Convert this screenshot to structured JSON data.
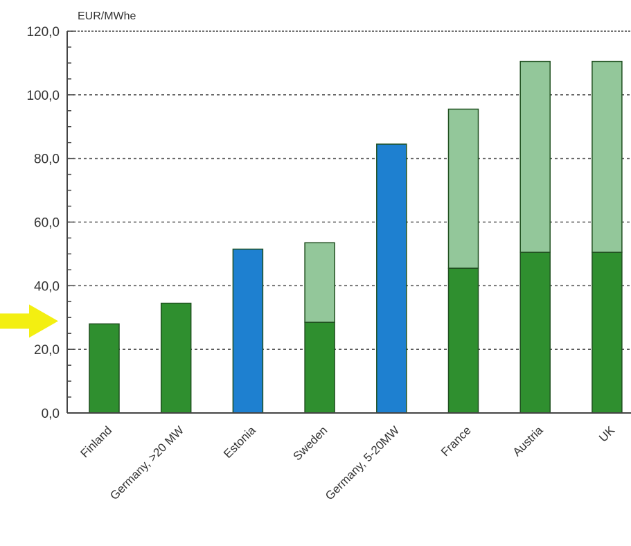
{
  "chart_data": {
    "type": "bar",
    "stacked": true,
    "unit_label": "EUR/MWhe",
    "categories": [
      "Finland",
      "Germany, >20 MW",
      "Estonia",
      "Sweden",
      "Germany, 5-20MW",
      "France",
      "Austria",
      "UK"
    ],
    "base_values": [
      28,
      34.5,
      51.5,
      28.5,
      84.5,
      45.5,
      50.5,
      50.5
    ],
    "upper_values": [
      0,
      0,
      0,
      25,
      0,
      50,
      60,
      60
    ],
    "bar_colors": [
      "green",
      "green",
      "blue",
      "green",
      "blue",
      "green",
      "green",
      "green"
    ],
    "ylim": [
      0,
      120
    ],
    "yticks": [
      "0,0",
      "20,0",
      "40,0",
      "60,0",
      "80,0",
      "100,0",
      "120,0"
    ],
    "ytick_values": [
      0,
      20,
      40,
      60,
      80,
      100,
      120
    ],
    "grid": "horizontal dashed",
    "highlighted_value": 28,
    "colors": {
      "green_dark": "#2f8f2f",
      "green_light": "#93c79a",
      "blue": "#1e80d0",
      "arrow": "#f3ef11",
      "axis": "#444444"
    }
  }
}
